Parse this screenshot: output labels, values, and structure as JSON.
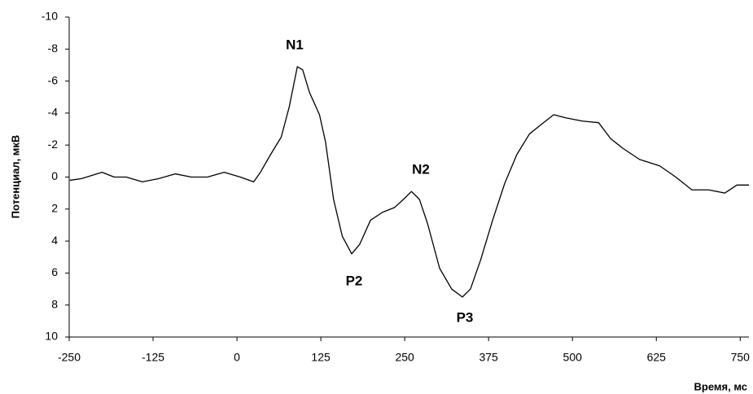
{
  "chart_data": {
    "type": "line",
    "x_label": "Время, мс",
    "y_label": "Потенциал, мкВ",
    "xlim": [
      -250,
      763
    ],
    "ylim": [
      10,
      -10
    ],
    "y_inverted": true,
    "xticks": [
      -250,
      -125,
      0,
      125,
      250,
      375,
      500,
      625,
      750
    ],
    "yticks": [
      -10,
      -8,
      -6,
      -4,
      -2,
      0,
      2,
      4,
      6,
      8,
      10
    ],
    "grid": false,
    "annotations": [
      "N1",
      "P2",
      "N2",
      "P3"
    ],
    "x": [
      -249,
      -232,
      -201,
      -183,
      -165,
      -141,
      -117,
      -92,
      -68,
      -44,
      -19,
      5,
      25,
      35,
      50,
      66,
      78,
      90,
      98,
      108,
      123,
      132,
      144,
      157,
      171,
      183,
      199,
      217,
      235,
      248,
      260,
      272,
      284,
      302,
      320,
      336,
      348,
      363,
      381,
      399,
      417,
      436,
      454,
      472,
      490,
      515,
      539,
      557,
      575,
      600,
      630,
      654,
      678,
      703,
      727,
      745,
      763
    ],
    "series": [
      {
        "color": "#000000",
        "values": [
          0.2,
          0.1,
          -0.3,
          0,
          0,
          0.3,
          0.1,
          -0.2,
          0,
          0,
          -0.3,
          0,
          0.3,
          -0.3,
          -1.4,
          -2.5,
          -4.4,
          -6.9,
          -6.7,
          -5.3,
          -3.9,
          -2.2,
          1.4,
          3.7,
          4.8,
          4.2,
          2.7,
          2.2,
          1.9,
          1.4,
          0.9,
          1.4,
          2.9,
          5.7,
          7.0,
          7.5,
          7.0,
          5.2,
          2.7,
          0.4,
          -1.4,
          -2.7,
          -3.3,
          -3.9,
          -3.7,
          -3.5,
          -3.4,
          -2.4,
          -1.8,
          -1.1,
          -0.7,
          0,
          0.8,
          0.8,
          1.0,
          0.5,
          0.5
        ]
      }
    ]
  }
}
